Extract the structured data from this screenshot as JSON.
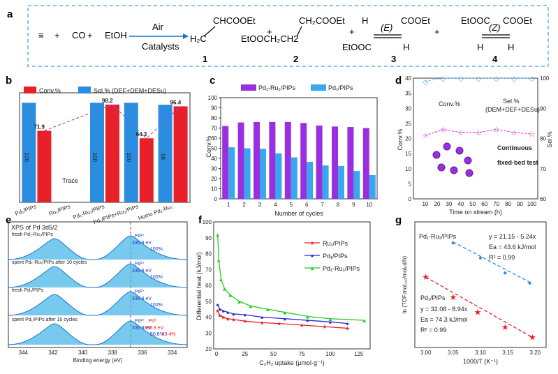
{
  "panels": {
    "a": "a",
    "b": "b",
    "c": "c",
    "d": "d",
    "e": "e",
    "f": "f",
    "g": "g"
  },
  "colors": {
    "pink": "#e020d0",
    "red": "#e8202a",
    "blue": "#2a8de0",
    "purple": "#9a2fe0",
    "lightblue": "#3aa6ee",
    "green": "#22cc22",
    "navy": "#2828d8",
    "cyan": "#40a8e8"
  },
  "reaction": {
    "reactants": [
      {
        "text": "≡"
      },
      {
        "text": "+"
      },
      {
        "text": "CO",
        "color": "pink"
      },
      {
        "text": "+"
      },
      {
        "text": "EtOH"
      }
    ],
    "arrow_top": "Air",
    "arrow_bottom": "Catalysts",
    "products": [
      {
        "num": "1",
        "lines": [
          "CHCOOEt",
          "H₂C"
        ]
      },
      {
        "num": "2",
        "lines": [
          "CH₂COOEt",
          "EtOOCH₂CH2"
        ]
      },
      {
        "num": "3",
        "lines": [
          "COOEt",
          "(E)",
          "EtOOC"
        ]
      },
      {
        "num": "4",
        "lines": [
          "EtOOC",
          "(Z)",
          "COOEt"
        ]
      }
    ],
    "plus": "+"
  },
  "chart_data": [
    {
      "type": "bar",
      "panel": "b",
      "legend": [
        "Conv.%",
        "Sel.% (DEF+DEM+DESu)"
      ],
      "categories": [
        "Pd₁/PIPs",
        "Ru₁/PIPs",
        "Pd₁-Ru₁/PIPs",
        "Pd₁/PIPs+Ru₁/PIPs",
        "Homo Pd₁-Ru₁"
      ],
      "series": [
        {
          "name": "Conv.%",
          "values": [
            71.9,
            0,
            98.2,
            64.3,
            96.4
          ]
        },
        {
          "name": "Sel.% (DEF+DEM+DESu)",
          "values": [
            100,
            0,
            100,
            100,
            98
          ]
        }
      ],
      "bar_labels": {
        "conv": [
          "71.9",
          "",
          "98.2",
          "64.3",
          "96.4"
        ],
        "sel": [
          "100",
          "",
          "100",
          "100",
          "98"
        ]
      },
      "annotation": "Trace",
      "ylim": [
        0,
        110
      ]
    },
    {
      "type": "bar",
      "panel": "c",
      "legend": [
        "Pd₁-Ru₁/PIPs",
        "Pd₁/PIPs"
      ],
      "xlabel": "Number of cycles",
      "ylabel": "Conv.%",
      "categories": [
        "1",
        "2",
        "3",
        "4",
        "5",
        "6",
        "7",
        "8",
        "9",
        "10"
      ],
      "series": [
        {
          "name": "Pd₁-Ru₁/PIPs",
          "values": [
            72,
            75.5,
            76,
            76,
            76,
            75,
            72.5,
            71.5,
            71,
            70
          ]
        },
        {
          "name": "Pd₁/PIPs",
          "values": [
            51,
            50,
            49.5,
            45,
            41,
            36.5,
            33,
            32.5,
            27.5,
            23.5
          ]
        }
      ],
      "ylim": [
        0,
        100
      ],
      "yticks": [
        "0",
        "10",
        "20",
        "30",
        "40",
        "50",
        "60",
        "70",
        "80",
        "90",
        "100"
      ]
    },
    {
      "type": "line",
      "panel": "d",
      "xlabel": "Time on stream (h)",
      "ylabel": "Conv.%",
      "ylabel2": "Sel.%",
      "annotations": [
        "Conv.%",
        "Sel.%",
        "(DEM+DEF+DESu)",
        "Continuous",
        "fixed-bed test"
      ],
      "x": [
        10,
        25,
        40,
        55,
        70,
        85,
        100
      ],
      "series": [
        {
          "name": "Conv.%",
          "axis": "left",
          "x": [
            10,
            25,
            40,
            55,
            70,
            85,
            100
          ],
          "values": [
            21,
            23,
            22,
            22,
            23,
            22,
            21.5
          ]
        },
        {
          "name": "Sel.%",
          "axis": "right",
          "x": [
            10,
            25,
            40,
            55,
            70,
            85,
            100
          ],
          "values": [
            99,
            100,
            100,
            100,
            100,
            100,
            100
          ]
        }
      ],
      "xlim": [
        0,
        105
      ],
      "ylim": [
        0,
        40
      ],
      "ylim2": [
        60,
        100
      ],
      "xticks": [
        "10",
        "20",
        "30",
        "40",
        "50",
        "60",
        "70",
        "80",
        "90",
        "100"
      ],
      "yticks": [
        "0",
        "5",
        "10",
        "15",
        "20",
        "25",
        "30",
        "35",
        "40"
      ],
      "yticks2": [
        "60",
        "70",
        "80",
        "90",
        "100"
      ]
    },
    {
      "type": "line",
      "panel": "e",
      "title": "XPS of Pd 3d5/2",
      "xlabel": "Binding energy (eV)",
      "xticks": [
        "344",
        "342",
        "340",
        "338",
        "336",
        "334"
      ],
      "traces": [
        {
          "label": "fresh Pd₁-Ru₁/PIPs",
          "peak_label": "Pd²⁺",
          "peak_be": "336.8 eV",
          "pct": "100%"
        },
        {
          "label": "spent Pd₁-Ru₁/PIPs after 10 cycles",
          "peak_label": "Pd²⁺",
          "peak_be": "336.8 eV",
          "pct": "100%"
        },
        {
          "label": "fresh Pd₁/PIPs",
          "peak_label": "Pd²⁺",
          "peak_be": "336.8 eV",
          "pct": "100%"
        },
        {
          "label": "spent Pd₁/PIPs after 10 cycles",
          "peak_label": "Pd²⁺",
          "peak_be": "336.9 eV",
          "pct": "50.6%",
          "peak2_label": "Pd⁰",
          "peak2_be": "335.9 eV",
          "pct2": "49.4%"
        }
      ]
    },
    {
      "type": "line",
      "panel": "f",
      "xlabel": "C₂H₂ uptake (μmol·g⁻¹)",
      "ylabel": "Differential heat (kJ/mol)",
      "xlim": [
        0,
        135
      ],
      "ylim": [
        20,
        100
      ],
      "xticks": [
        "0",
        "25",
        "50",
        "75",
        "100",
        "125"
      ],
      "yticks": [
        "20",
        "30",
        "40",
        "50",
        "60",
        "70",
        "80",
        "90",
        "100"
      ],
      "series": [
        {
          "name": "Ru₁/PIPs",
          "color": "red",
          "x": [
            1,
            3,
            6,
            10,
            15,
            25,
            40,
            55,
            75,
            95,
            115
          ],
          "values": [
            44,
            41,
            40,
            39,
            38.5,
            37.5,
            36.5,
            36,
            35,
            34,
            33
          ]
        },
        {
          "name": "Pd₁/PIPs",
          "color": "navy",
          "x": [
            1,
            3,
            6,
            10,
            15,
            25,
            40,
            60,
            80,
            100,
            115
          ],
          "values": [
            48,
            45,
            44,
            43,
            42,
            41.5,
            40,
            39,
            38,
            37,
            36
          ]
        },
        {
          "name": "Pd₁-Ru₁/PIPs",
          "color": "green",
          "x": [
            1,
            2,
            4,
            7,
            12,
            20,
            30,
            45,
            60,
            80,
            100,
            130
          ],
          "values": [
            92,
            76,
            64,
            58,
            54,
            50,
            47,
            45,
            43,
            40.5,
            39,
            38
          ]
        }
      ]
    },
    {
      "type": "scatter",
      "panel": "g",
      "xlabel": "1000/T (K⁻¹)",
      "ylabel": "ln (TOF.mol꜀₂ₒ/molₚd/h)",
      "xlim": [
        2.98,
        3.22
      ],
      "xticks": [
        "3.00",
        "3.05",
        "3.10",
        "3.15",
        "3.20"
      ],
      "series": [
        {
          "name": "Pd₁-Ru₁/PIPs",
          "color": "blue",
          "x": [
            3.05,
            3.1,
            3.145,
            3.19
          ],
          "values": [
            5.2,
            4.9,
            4.6,
            4.4
          ]
        },
        {
          "name": "Pd₁/PIPs",
          "color": "red",
          "x": [
            3.0,
            3.05,
            3.095,
            3.145,
            3.195
          ],
          "values": [
            4.5,
            4.1,
            3.8,
            3.5,
            3.3
          ]
        }
      ],
      "annotations": [
        {
          "title": "Pd₁-Ru₁/PIPs",
          "eq": "y = 21.15 - 5.24x",
          "ea": "Ea = 43.6 kJ/mol",
          "r2": "R² = 0.99"
        },
        {
          "title": "Pd₁/PIPs",
          "eq": "y = 32.08 - 8.94x",
          "ea": "Ea = 74.3 kJ/mol",
          "r2": "R² = 0.99"
        }
      ]
    }
  ]
}
